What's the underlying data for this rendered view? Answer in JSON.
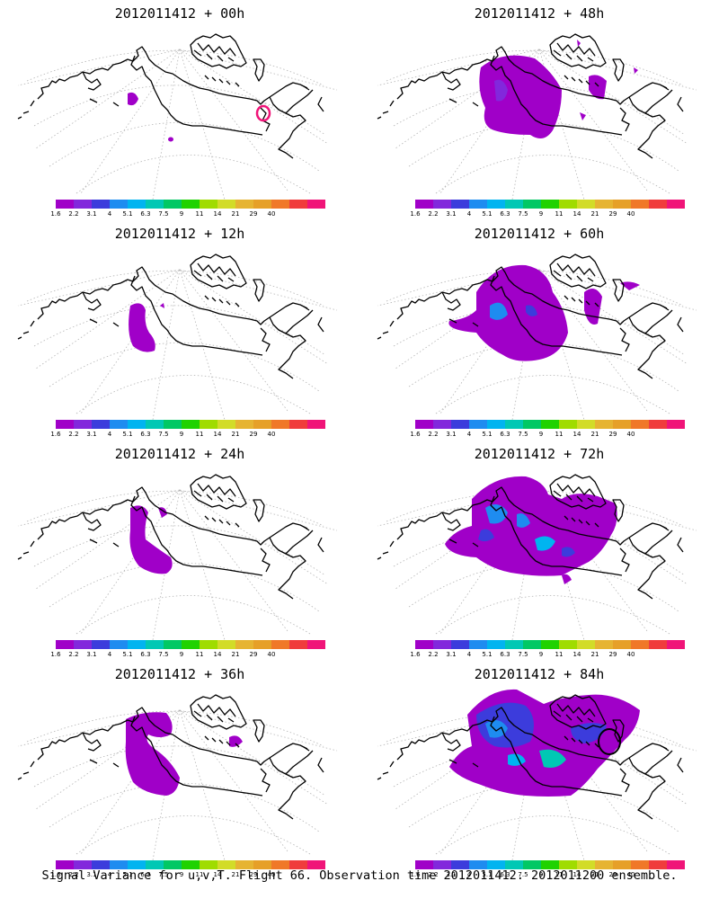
{
  "caption": "Signal Variance for u,v,T. Flight 66. Observation time 2012011412. 2012011200 ensemble.",
  "colorbar": {
    "colors": [
      "#a000c8",
      "#8228dc",
      "#3c3cdc",
      "#1e8cf0",
      "#00b4f0",
      "#00c8b4",
      "#00c864",
      "#20d200",
      "#a0dc00",
      "#d2dc28",
      "#e6b432",
      "#e6a028",
      "#f07828",
      "#f03c3c",
      "#f01478"
    ],
    "tick_labels": [
      "1.6",
      "2.2",
      "3.1",
      "4",
      "5.1",
      "6.3",
      "7.5",
      "9",
      "11",
      "14",
      "21",
      "29",
      "40"
    ]
  },
  "panels": [
    {
      "title": "2012011412 + 00h",
      "lead_hours": 0
    },
    {
      "title": "2012011412 + 48h",
      "lead_hours": 48
    },
    {
      "title": "2012011412 + 12h",
      "lead_hours": 12
    },
    {
      "title": "2012011412 + 60h",
      "lead_hours": 60
    },
    {
      "title": "2012011412 + 24h",
      "lead_hours": 24
    },
    {
      "title": "2012011412 + 72h",
      "lead_hours": 72
    },
    {
      "title": "2012011412 + 36h",
      "lead_hours": 36
    },
    {
      "title": "2012011412 + 84h",
      "lead_hours": 84
    }
  ]
}
